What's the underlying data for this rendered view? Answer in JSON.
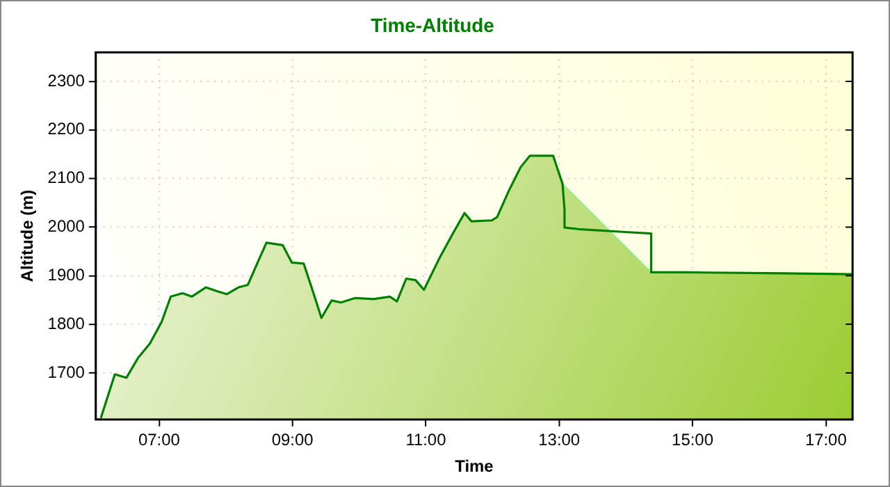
{
  "chart_data": {
    "type": "area",
    "title": "Time-Altitude",
    "xlabel": "Time",
    "ylabel": "Altitude (m)",
    "xlim": [
      6.05,
      17.4
    ],
    "xticks": [
      {
        "value": 7,
        "label": "07:00"
      },
      {
        "value": 9,
        "label": "09:00"
      },
      {
        "value": 11,
        "label": "11:00"
      },
      {
        "value": 13,
        "label": "13:00"
      },
      {
        "value": 15,
        "label": "15:00"
      },
      {
        "value": 17,
        "label": "17:00"
      }
    ],
    "ylim": [
      1604,
      2360
    ],
    "yticks": [
      1700,
      1800,
      1900,
      2000,
      2100,
      2200,
      2300
    ],
    "grid": true,
    "legend": false,
    "marker": "none",
    "line_style": "solid",
    "series": [
      {
        "color": "#90ee90",
        "x": [
          6.126,
          6.336,
          6.51,
          6.685,
          6.86,
          7.035,
          7.175,
          7.35,
          7.49,
          7.7,
          7.874,
          8.014,
          8.19,
          8.33,
          8.47,
          8.61,
          8.853,
          8.99,
          9.168,
          9.31,
          9.434,
          9.587,
          9.727,
          9.937,
          10.217,
          10.46,
          10.566,
          10.706,
          10.846,
          10.972,
          11.196,
          11.406,
          11.58,
          11.685,
          11.99,
          12.07,
          12.245,
          12.42,
          12.56,
          12.91,
          13.05,
          14.38,
          14.87,
          16.37,
          17.4
        ],
        "values": [
          1607,
          1697,
          1690,
          1731,
          1760,
          1804,
          1857,
          1864,
          1857,
          1876,
          1868,
          1862,
          1876,
          1881,
          1925,
          1968,
          1963,
          1927,
          1925,
          1866,
          1813,
          1849,
          1845,
          1854,
          1852,
          1857,
          1847,
          1894,
          1891,
          1871,
          1934,
          1987,
          2029,
          2012,
          2014,
          2021,
          2075,
          2123,
          2147,
          2147,
          2089,
          1907,
          1907,
          1905,
          1903
        ]
      },
      {
        "type": "line",
        "color": "#008000",
        "x": [
          6.126,
          6.336,
          6.51,
          6.685,
          6.86,
          7.035,
          7.175,
          7.35,
          7.49,
          7.7,
          7.874,
          8.014,
          8.19,
          8.33,
          8.47,
          8.61,
          8.853,
          8.99,
          9.168,
          9.31,
          9.434,
          9.587,
          9.727,
          9.937,
          10.217,
          10.46,
          10.566,
          10.706,
          10.846,
          10.972,
          11.196,
          11.406,
          11.58,
          11.685,
          11.99,
          12.07,
          12.245,
          12.42,
          12.56,
          12.91,
          13.05,
          13.08,
          13.08,
          13.29,
          13.99,
          14.38,
          14.38,
          14.87,
          16.37,
          17.4
        ],
        "values": [
          1607,
          1697,
          1690,
          1731,
          1760,
          1804,
          1857,
          1864,
          1857,
          1876,
          1868,
          1862,
          1876,
          1881,
          1925,
          1968,
          1963,
          1927,
          1925,
          1866,
          1813,
          1849,
          1845,
          1854,
          1852,
          1857,
          1847,
          1894,
          1891,
          1871,
          1934,
          1987,
          2029,
          2012,
          2014,
          2021,
          2075,
          2123,
          2147,
          2147,
          2089,
          2036,
          1999,
          1996,
          1990,
          1987,
          1907,
          1907,
          1905,
          1903
        ]
      }
    ]
  }
}
